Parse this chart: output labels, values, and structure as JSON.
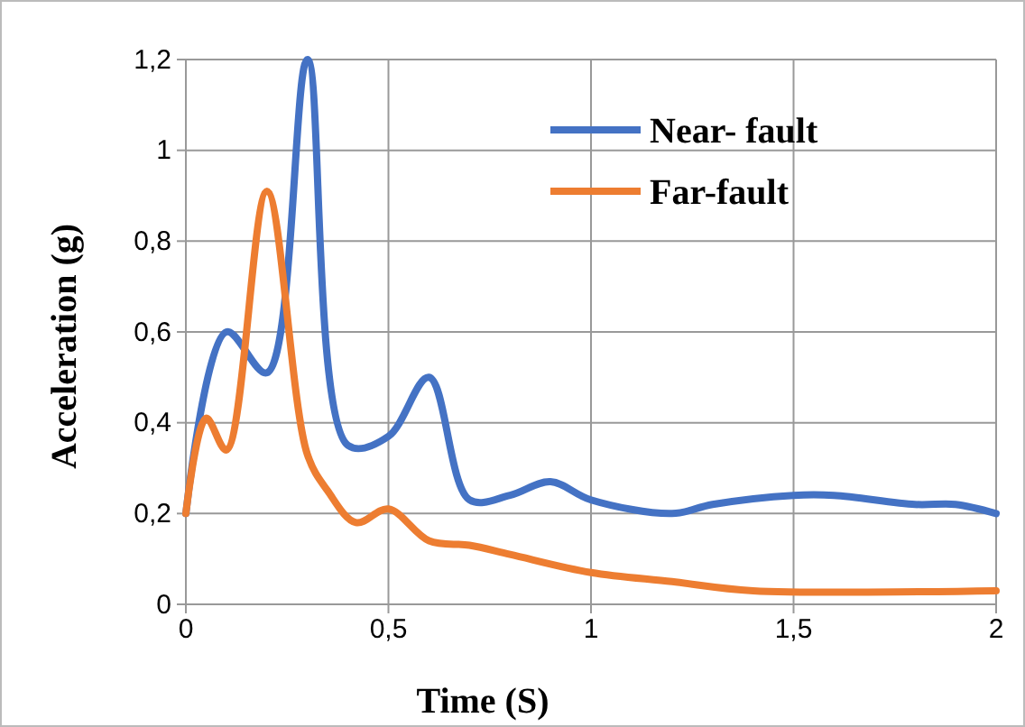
{
  "chart_data": {
    "type": "line",
    "xlabel": "Time (S)",
    "ylabel": "Acceleration (g)",
    "xlim": [
      0,
      2
    ],
    "xticks": [
      0,
      {
        "value": 0.5,
        "label": "0,5"
      },
      1,
      {
        "value": 1.5,
        "label": "1,5"
      },
      2
    ],
    "ylim": [
      0,
      1.2
    ],
    "yticks": [
      0,
      {
        "value": 0.2,
        "label": "0,2"
      },
      {
        "value": 0.4,
        "label": "0,4"
      },
      {
        "value": 0.6,
        "label": "0,6"
      },
      {
        "value": 0.8,
        "label": "0,8"
      },
      1,
      {
        "value": 1.2,
        "label": "1,2"
      }
    ],
    "grid": true,
    "legend": "top right",
    "marker": "none",
    "line_style": "solid",
    "series": [
      {
        "name": "Near- fault",
        "color": "#4472c4",
        "x": [
          0,
          0.1,
          0.2,
          0.3,
          0.4,
          0.5,
          0.6,
          0.7,
          0.8,
          0.9,
          1.0,
          1.2,
          1.3,
          1.5,
          1.6,
          1.8,
          1.9,
          2
        ],
        "values": [
          0.2,
          0.6,
          0.51,
          1.2,
          0.35,
          0.37,
          0.5,
          0.23,
          0.24,
          0.27,
          0.23,
          0.2,
          0.22,
          0.24,
          0.24,
          0.22,
          0.22,
          0.2
        ]
      },
      {
        "name": "Far-fault",
        "color": "#ed7d31",
        "x": [
          0,
          0.05,
          0.1,
          0.2,
          0.3,
          0.35,
          0.42,
          0.5,
          0.6,
          0.7,
          0.8,
          1.0,
          1.2,
          1.4,
          2
        ],
        "values": [
          0.2,
          0.41,
          0.34,
          0.91,
          0.33,
          0.25,
          0.18,
          0.21,
          0.14,
          0.13,
          0.11,
          0.07,
          0.05,
          0.03,
          0.03
        ]
      }
    ]
  }
}
